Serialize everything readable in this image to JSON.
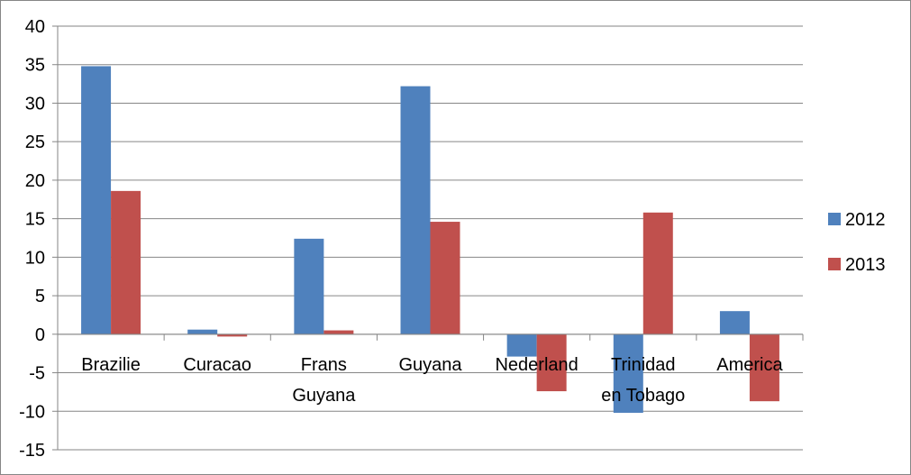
{
  "chart_data": {
    "type": "bar",
    "title": "",
    "xlabel": "",
    "ylabel": "",
    "categories": [
      [
        "Brazilie"
      ],
      [
        "Curacao"
      ],
      [
        "Frans",
        "Guyana"
      ],
      [
        "Guyana"
      ],
      [
        "Nederland"
      ],
      [
        "Trinidad",
        "en Tobago"
      ],
      [
        "America"
      ]
    ],
    "series": [
      {
        "name": "2012",
        "color": "#4F81BD",
        "values": [
          34.8,
          0.6,
          12.4,
          32.2,
          -2.9,
          -10.2,
          3.0
        ]
      },
      {
        "name": "2013",
        "color": "#C0504D",
        "values": [
          18.6,
          -0.3,
          0.5,
          14.6,
          -7.4,
          15.8,
          -8.7
        ]
      }
    ],
    "ylim": [
      -15,
      40
    ],
    "yticks": [
      "40",
      "35",
      "30",
      "25",
      "20",
      "15",
      "10",
      "5",
      "0",
      "-5",
      "-10",
      "-15"
    ],
    "grid": true,
    "legend_position": "right"
  }
}
